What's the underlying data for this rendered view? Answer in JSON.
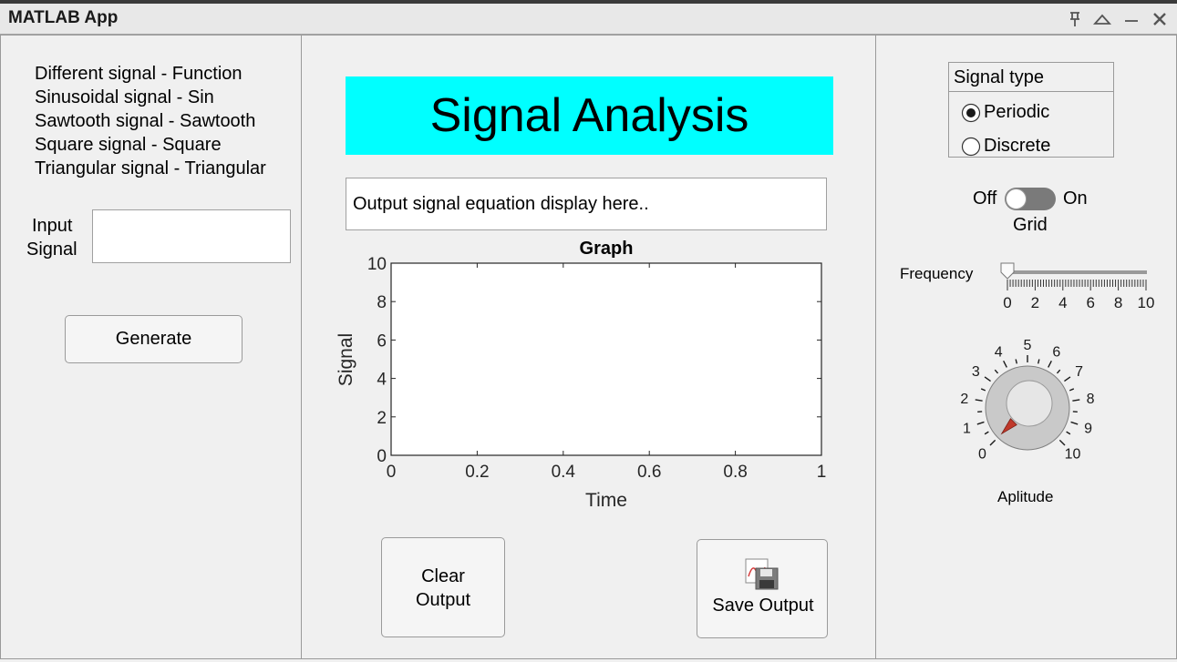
{
  "window": {
    "title": "MATLAB App",
    "controls": [
      "pin-icon",
      "collapse-icon",
      "minimize-icon",
      "close-icon"
    ]
  },
  "left_panel": {
    "legend_lines": [
      "Different signal - Function",
      "Sinusoidal signal - Sin",
      "Sawtooth signal -  Sawtooth",
      "Square signal - Square",
      "Triangular signal - Triangular"
    ],
    "input_label_line1": "Input",
    "input_label_line2": "Signal",
    "input_value": "",
    "generate_label": "Generate"
  },
  "center_panel": {
    "title": "Signal Analysis",
    "title_bg": "#00ffff",
    "equation_text": "Output signal equation display here..",
    "clear_label_line1": "Clear",
    "clear_label_line2": "Output",
    "save_label": "Save Output"
  },
  "chart_data": {
    "type": "line",
    "title": "Graph",
    "xlabel": "Time",
    "ylabel": "Signal",
    "xlim": [
      0,
      1
    ],
    "ylim": [
      0,
      10
    ],
    "xticks": [
      0,
      0.2,
      0.4,
      0.6,
      0.8,
      1
    ],
    "yticks": [
      0,
      2,
      4,
      6,
      8,
      10
    ],
    "xtick_labels": [
      "0",
      "0.2",
      "0.4",
      "0.6",
      "0.8",
      "1"
    ],
    "ytick_labels": [
      "0",
      "2",
      "4",
      "6",
      "8",
      "10"
    ],
    "series": [],
    "grid": false
  },
  "right_panel": {
    "signal_type_title": "Signal type",
    "options": [
      {
        "label": "Periodic",
        "selected": true
      },
      {
        "label": "Discrete",
        "selected": false
      }
    ],
    "grid_switch": {
      "off_label": "Off",
      "on_label": "On",
      "label": "Grid",
      "state": "Off"
    },
    "frequency": {
      "label": "Frequency",
      "value": 0,
      "min": 0,
      "max": 10,
      "major_tick_labels": [
        "0",
        "2",
        "4",
        "6",
        "8",
        "10"
      ]
    },
    "amplitude": {
      "label": "Aplitude",
      "value": 0,
      "min": 0,
      "max": 10,
      "tick_labels": [
        "0",
        "1",
        "2",
        "3",
        "4",
        "5",
        "6",
        "7",
        "8",
        "9",
        "10"
      ],
      "pointer_color": "#c0392b"
    }
  }
}
